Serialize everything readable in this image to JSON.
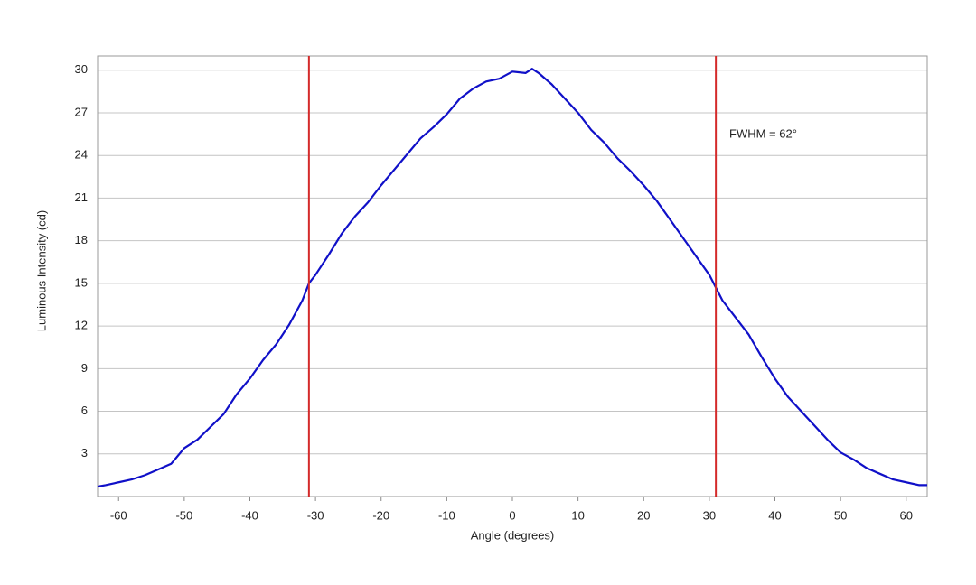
{
  "chart_data": {
    "type": "line",
    "x_label": "Angle (degrees)",
    "y_label": "Luminous Intensity (cd)",
    "annotation": "FWHM = 62°",
    "xlim": [
      -63.2,
      63.2
    ],
    "ylim": [
      0,
      31
    ],
    "xticks": [
      -60,
      -50,
      -40,
      -30,
      -20,
      -10,
      0,
      10,
      20,
      30,
      40,
      50,
      60
    ],
    "yticks": [
      3,
      6,
      9,
      12,
      15,
      18,
      21,
      24,
      27,
      30
    ],
    "grid": true,
    "vlines": [
      -31,
      31
    ],
    "vline_color": "#d42a2a",
    "series": [
      {
        "name": "Luminous Intensity",
        "color": "#1010c8",
        "x": [
          -63.2,
          -62,
          -60,
          -58,
          -56,
          -54,
          -52,
          -50,
          -48,
          -46,
          -44,
          -42,
          -40,
          -38,
          -36,
          -34,
          -32,
          -31,
          -30,
          -28,
          -26,
          -24,
          -22,
          -20,
          -18,
          -16,
          -14,
          -12,
          -10,
          -8,
          -6,
          -4,
          -2,
          0,
          2,
          3,
          4,
          6,
          8,
          10,
          12,
          14,
          16,
          18,
          20,
          22,
          24,
          26,
          28,
          30,
          32,
          34,
          36,
          38,
          40,
          42,
          44,
          46,
          48,
          50,
          52,
          54,
          56,
          58,
          60,
          62,
          63.2
        ],
        "values": [
          0.7,
          0.8,
          1.0,
          1.2,
          1.5,
          1.9,
          2.3,
          3.4,
          4.0,
          4.9,
          5.8,
          7.2,
          8.3,
          9.6,
          10.7,
          12.1,
          13.8,
          15.0,
          15.6,
          17.0,
          18.5,
          19.7,
          20.7,
          21.9,
          23.0,
          24.1,
          25.2,
          26.0,
          26.9,
          28.0,
          28.7,
          29.2,
          29.4,
          29.9,
          29.8,
          30.1,
          29.8,
          29.0,
          28.0,
          27.0,
          25.8,
          24.9,
          23.8,
          22.9,
          21.9,
          20.8,
          19.5,
          18.2,
          16.9,
          15.6,
          13.8,
          12.6,
          11.4,
          9.8,
          8.3,
          7.0,
          6.0,
          5.0,
          4.0,
          3.1,
          2.6,
          2.0,
          1.6,
          1.2,
          1.0,
          0.8,
          0.8
        ]
      }
    ]
  }
}
